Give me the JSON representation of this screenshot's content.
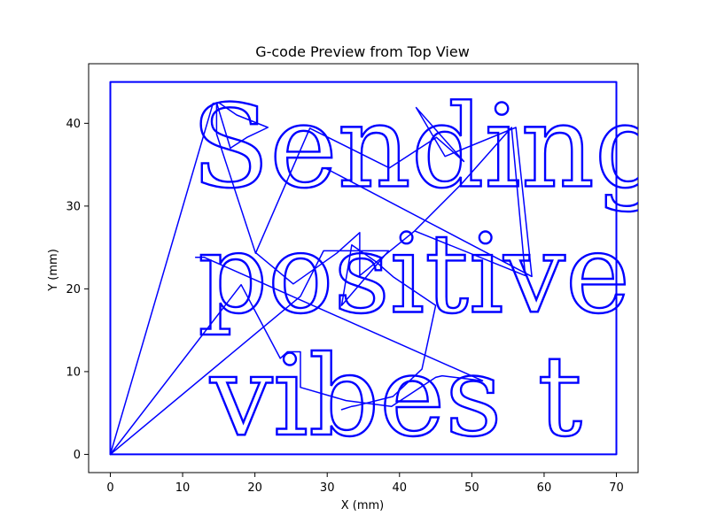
{
  "chart_data": {
    "type": "line",
    "title": "G-code Preview from Top View",
    "xlabel": "X (mm)",
    "ylabel": "Y (mm)",
    "xlim": [
      -3,
      73
    ],
    "ylim": [
      -2.2,
      47.2
    ],
    "xticks": [
      0,
      10,
      20,
      30,
      40,
      50,
      60,
      70
    ],
    "yticks": [
      0,
      10,
      20,
      30,
      40
    ],
    "grid": false,
    "color": "#0000ff",
    "series": [
      {
        "type": "line",
        "x": [
          0,
          0,
          70,
          70,
          0
        ],
        "y": [
          0,
          45,
          45,
          0,
          0
        ]
      },
      {
        "type": "line",
        "x": [
          0,
          14.2,
          15,
          17.5,
          21.8,
          18.9,
          16.6,
          14.7,
          14.7,
          20.1,
          27.6,
          38.6,
          45.1,
          48.9,
          42.3,
          46.3,
          56.1,
          58.3,
          29.7
        ],
        "y": [
          0,
          42.4,
          42.5,
          41.0,
          39.5,
          38.3,
          37.0,
          42.5,
          38.7,
          24.3,
          39.4,
          34.6,
          38.3,
          35.4,
          41.9,
          36.0,
          39.5,
          21.5,
          34.6
        ]
      },
      {
        "type": "line",
        "x": [
          20.2,
          25.3,
          31.3,
          34.5,
          34.5,
          42.1,
          48.5,
          55.5,
          57.4,
          42.1
        ],
        "y": [
          24.3,
          20.6,
          24.3,
          26.8,
          21.6,
          27.0,
          32.6,
          39.5,
          21.6,
          27.0
        ]
      },
      {
        "type": "line",
        "x": [
          0,
          18.1,
          23.5,
          24.5,
          26.3,
          26.3,
          32.6,
          38.9,
          45.0,
          45.9,
          51.5,
          13.0,
          11.8
        ],
        "y": [
          0,
          20.5,
          11.6,
          12.4,
          12.4,
          8.1,
          6.5,
          5.8,
          9.3,
          9.5,
          8.9,
          23.8,
          23.8
        ]
      },
      {
        "type": "line",
        "x": [
          0,
          26.3,
          29.5,
          38.5,
          32.0,
          33.4,
          36.7,
          39.2,
          45.0,
          43.1,
          39.1,
          34.1,
          33.4,
          32.0
        ],
        "y": [
          0,
          19.1,
          24.6,
          24.6,
          18.0,
          25.3,
          23.3,
          21.4,
          18.0,
          10.3,
          7.0,
          5.9,
          5.8,
          5.4
        ]
      }
    ],
    "text_paths": [
      {
        "text": "Sending",
        "x": 11.2,
        "y": 32.4,
        "size_mm": 13.8
      },
      {
        "text": "positive",
        "x": 12.1,
        "y": 17.2,
        "size_mm": 13.2
      },
      {
        "text": "vibes t",
        "x": 13.8,
        "y": 2.4,
        "size_mm": 13.4
      }
    ]
  }
}
